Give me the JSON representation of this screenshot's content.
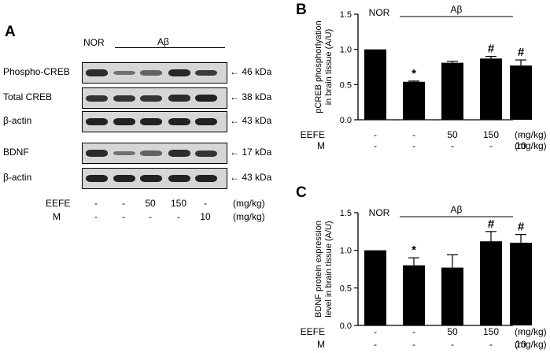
{
  "panel_a": {
    "letter": "A",
    "header_nor": "NOR",
    "header_abeta": "Aβ",
    "blots": [
      {
        "label": "Phospho-CREB",
        "kda": "46 kDa",
        "intensities": [
          0.85,
          0.35,
          0.45,
          0.9,
          0.75
        ]
      },
      {
        "label": "Total CREB",
        "kda": "38 kDa",
        "intensities": [
          0.8,
          0.8,
          0.8,
          0.85,
          0.95
        ]
      },
      {
        "label": "β-actin",
        "kda": "43 kDa",
        "intensities": [
          0.95,
          0.95,
          0.95,
          0.95,
          0.95
        ]
      },
      {
        "label": "BDNF",
        "kda": "17 kDa",
        "intensities": [
          0.85,
          0.35,
          0.45,
          0.85,
          0.8
        ]
      },
      {
        "label": "β-actin",
        "kda": "43 kDa",
        "intensities": [
          0.95,
          0.95,
          0.95,
          0.95,
          0.95
        ]
      }
    ],
    "treatments": {
      "eefe_label": "EEFE",
      "m_label": "M",
      "eefe_values": [
        "-",
        "-",
        "50",
        "150",
        "-"
      ],
      "m_values": [
        "-",
        "-",
        "-",
        "-",
        "10"
      ],
      "unit": "(mg/kg)"
    }
  },
  "chart_data": [
    {
      "type": "bar",
      "panel": "B",
      "ylabel": "pCREB phosphorylation in brain tissue (A/U)",
      "ylabel_lines": [
        "pCREB phosphorlyation",
        "in brain tissue (A/U)"
      ],
      "ylim": [
        0,
        1.5
      ],
      "yticks": [
        "0.0",
        "0.5",
        "1.0",
        "1.5"
      ],
      "ytick_values": [
        0,
        0.5,
        1.0,
        1.5
      ],
      "group_labels": {
        "nor": "NOR",
        "abeta": "Aβ"
      },
      "categories": [
        "NOR",
        "Aβ",
        "Aβ + EEFE 50",
        "Aβ + EEFE 150",
        "Aβ + M 10"
      ],
      "values": [
        1.0,
        0.54,
        0.81,
        0.87,
        0.77
      ],
      "errors": [
        0.0,
        0.01,
        0.02,
        0.03,
        0.08
      ],
      "markers": [
        "",
        "*",
        "",
        "#",
        "#"
      ],
      "eefe_label": "EEFE",
      "m_label": "M",
      "eefe_values": [
        "-",
        "-",
        "50",
        "150",
        "-"
      ],
      "m_values": [
        "-",
        "-",
        "-",
        "-",
        "10"
      ],
      "unit": "(mg/kg)"
    },
    {
      "type": "bar",
      "panel": "C",
      "ylabel": "BDNF protein expression level in brain tissue (A/U)",
      "ylabel_lines": [
        "BDNF protein expression",
        "level in brain tissue (A/U)"
      ],
      "ylim": [
        0,
        1.5
      ],
      "yticks": [
        "0.0",
        "0.5",
        "1.0",
        "1.5"
      ],
      "ytick_values": [
        0,
        0.5,
        1.0,
        1.5
      ],
      "group_labels": {
        "nor": "NOR",
        "abeta": "Aβ"
      },
      "categories": [
        "NOR",
        "Aβ",
        "Aβ + EEFE 50",
        "Aβ + EEFE 150",
        "Aβ + M 10"
      ],
      "values": [
        1.0,
        0.8,
        0.77,
        1.12,
        1.1
      ],
      "errors": [
        0.0,
        0.1,
        0.17,
        0.13,
        0.11
      ],
      "markers": [
        "",
        "*",
        "",
        "#",
        "#"
      ],
      "eefe_label": "EEFE",
      "m_label": "M",
      "eefe_values": [
        "-",
        "-",
        "50",
        "150",
        "-"
      ],
      "m_values": [
        "-",
        "-",
        "-",
        "-",
        "10"
      ],
      "unit": "(mg/kg)"
    }
  ]
}
